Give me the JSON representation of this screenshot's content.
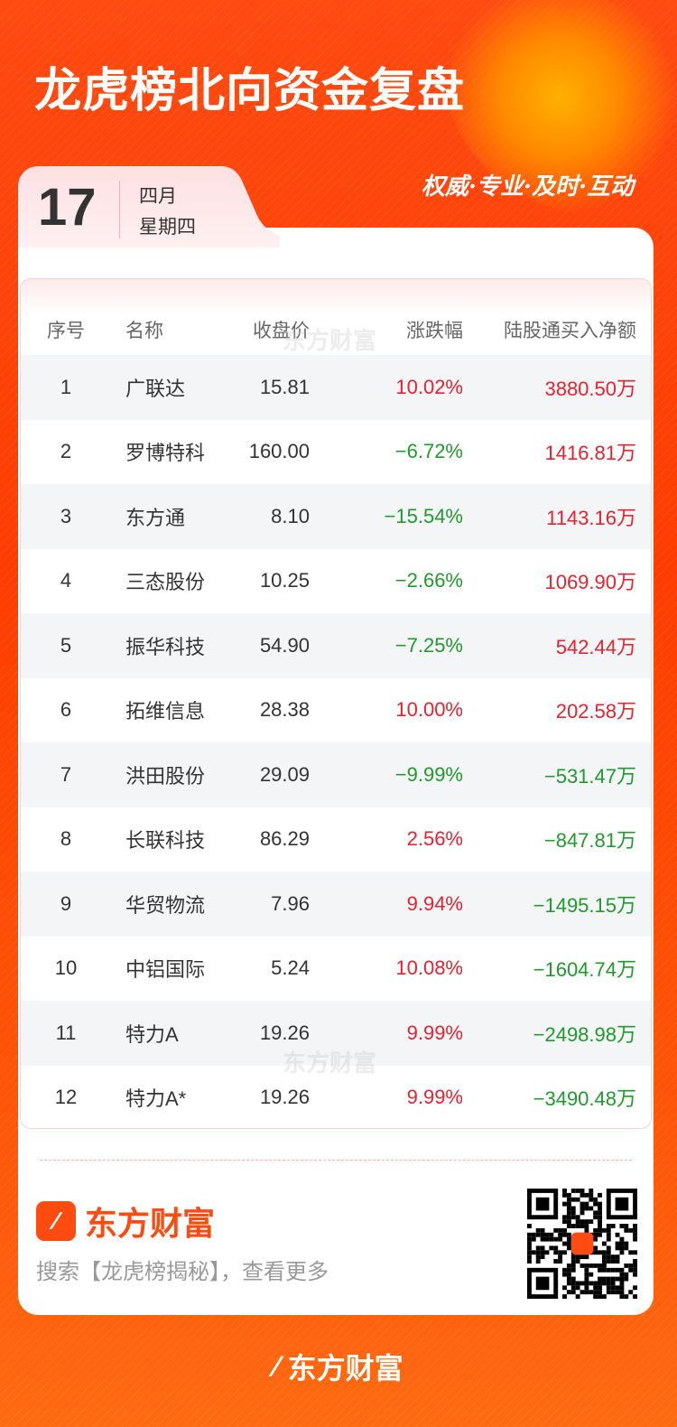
{
  "header": {
    "title": "龙虎榜北向资金复盘",
    "slogan": "权威·专业·及时·互动"
  },
  "date": {
    "day": "17",
    "month": "四月",
    "weekday": "星期四"
  },
  "colors": {
    "up": "#e8222f",
    "down": "#1f9a2c",
    "brand": "#ff4a10"
  },
  "table": {
    "columns": [
      "序号",
      "名称",
      "收盘价",
      "涨跌幅",
      "陆股通买入净额"
    ],
    "rows": [
      {
        "no": "1",
        "name": "广联达",
        "price": "15.81",
        "change": "10.02%",
        "net": "3880.50万",
        "cdir": "up",
        "ndir": "up"
      },
      {
        "no": "2",
        "name": "罗博特科",
        "price": "160.00",
        "change": "−6.72%",
        "net": "1416.81万",
        "cdir": "dn",
        "ndir": "up"
      },
      {
        "no": "3",
        "name": "东方通",
        "price": "8.10",
        "change": "−15.54%",
        "net": "1143.16万",
        "cdir": "dn",
        "ndir": "up"
      },
      {
        "no": "4",
        "name": "三态股份",
        "price": "10.25",
        "change": "−2.66%",
        "net": "1069.90万",
        "cdir": "dn",
        "ndir": "up"
      },
      {
        "no": "5",
        "name": "振华科技",
        "price": "54.90",
        "change": "−7.25%",
        "net": "542.44万",
        "cdir": "dn",
        "ndir": "up"
      },
      {
        "no": "6",
        "name": "拓维信息",
        "price": "28.38",
        "change": "10.00%",
        "net": "202.58万",
        "cdir": "up",
        "ndir": "up"
      },
      {
        "no": "7",
        "name": "洪田股份",
        "price": "29.09",
        "change": "−9.99%",
        "net": "−531.47万",
        "cdir": "dn",
        "ndir": "dn"
      },
      {
        "no": "8",
        "name": "长联科技",
        "price": "86.29",
        "change": "2.56%",
        "net": "−847.81万",
        "cdir": "up",
        "ndir": "dn"
      },
      {
        "no": "9",
        "name": "华贸物流",
        "price": "7.96",
        "change": "9.94%",
        "net": "−1495.15万",
        "cdir": "up",
        "ndir": "dn"
      },
      {
        "no": "10",
        "name": "中铝国际",
        "price": "5.24",
        "change": "10.08%",
        "net": "−1604.74万",
        "cdir": "up",
        "ndir": "dn"
      },
      {
        "no": "11",
        "name": "特力A",
        "price": "19.26",
        "change": "9.99%",
        "net": "−2498.98万",
        "cdir": "up",
        "ndir": "dn"
      },
      {
        "no": "12",
        "name": "特力A*",
        "price": "19.26",
        "change": "9.99%",
        "net": "−3490.48万",
        "cdir": "up",
        "ndir": "dn"
      }
    ],
    "watermark": "东方财富"
  },
  "footer": {
    "brand": "东方财富",
    "search_hint": "搜索【龙虎榜揭秘】，查看更多",
    "bottom_brand": "东方财富",
    "qr_icon": "qr-code"
  }
}
